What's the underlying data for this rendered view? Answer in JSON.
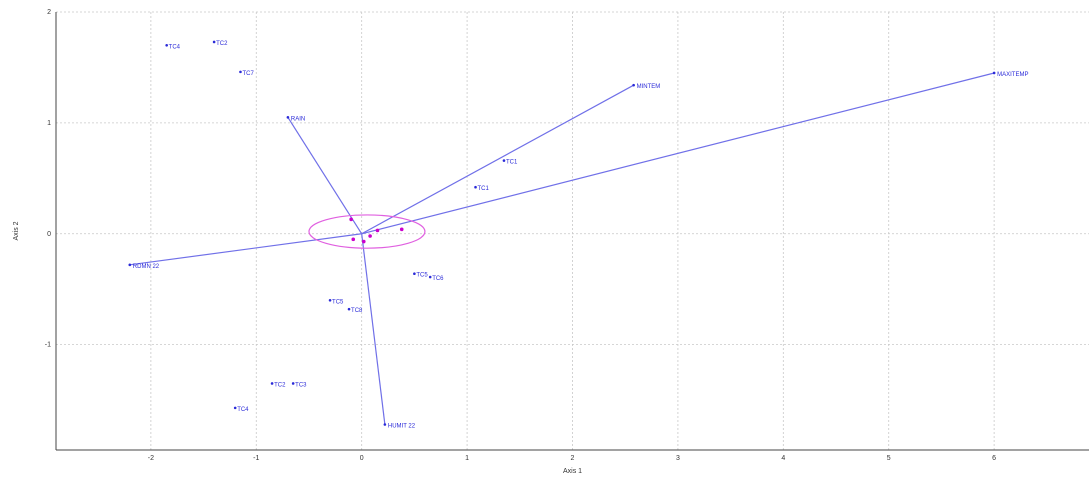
{
  "chart_data": {
    "type": "scatter",
    "title": "",
    "xlabel": "Axis 1",
    "ylabel": "Axis 2",
    "xlim": [
      -2.9,
      6.9
    ],
    "ylim": [
      -1.95,
      2.0
    ],
    "grid": true,
    "xticks": [
      -2,
      -1,
      0,
      1,
      2,
      3,
      4,
      5,
      6
    ],
    "yticks": [
      -1,
      0,
      1,
      2
    ],
    "tick_labels_x": [
      "-2",
      "-1",
      "0",
      "1",
      "2",
      "3",
      "4",
      "5",
      "6"
    ],
    "tick_labels_y": [
      "-1",
      "0",
      "1",
      "2"
    ],
    "colors": {
      "points": "#2a2ad8",
      "vectors": "#7070e8",
      "ellipse": "#e060e0",
      "centroids": "#cc00cc",
      "grid": "#c8c8c8"
    },
    "points": [
      {
        "label": "TC4",
        "x": -1.85,
        "y": 1.7
      },
      {
        "label": "TC2",
        "x": -1.4,
        "y": 1.73
      },
      {
        "label": "TC7",
        "x": -1.15,
        "y": 1.46
      },
      {
        "label": "TC1",
        "x": 1.35,
        "y": 0.66
      },
      {
        "label": "TC1",
        "x": 1.08,
        "y": 0.42
      },
      {
        "label": "TC5",
        "x": 0.5,
        "y": -0.36
      },
      {
        "label": "TC6",
        "x": 0.65,
        "y": -0.39
      },
      {
        "label": "TC5",
        "x": -0.3,
        "y": -0.6
      },
      {
        "label": "TC8",
        "x": -0.12,
        "y": -0.68
      },
      {
        "label": "TC2",
        "x": -0.85,
        "y": -1.35
      },
      {
        "label": "TC3",
        "x": -0.65,
        "y": -1.35
      },
      {
        "label": "TC4",
        "x": -1.2,
        "y": -1.57
      }
    ],
    "vectors": [
      {
        "label": "RAIN",
        "x": -0.7,
        "y": 1.05
      },
      {
        "label": "MINTEM",
        "x": 2.58,
        "y": 1.34
      },
      {
        "label": "MAXITEMP",
        "x": 6.0,
        "y": 1.45
      },
      {
        "label": "RDMN 22",
        "x": -2.2,
        "y": -0.28
      },
      {
        "label": "HUMIT 22",
        "x": 0.22,
        "y": -1.72
      }
    ],
    "ellipse": {
      "cx": 0.05,
      "cy": 0.02,
      "rx": 0.55,
      "ry": 0.15
    },
    "centroids": [
      {
        "x": -0.1,
        "y": 0.13
      },
      {
        "x": 0.38,
        "y": 0.04
      },
      {
        "x": 0.15,
        "y": 0.03
      },
      {
        "x": -0.08,
        "y": -0.05
      },
      {
        "x": 0.02,
        "y": -0.07
      },
      {
        "x": 0.08,
        "y": -0.02
      }
    ]
  }
}
